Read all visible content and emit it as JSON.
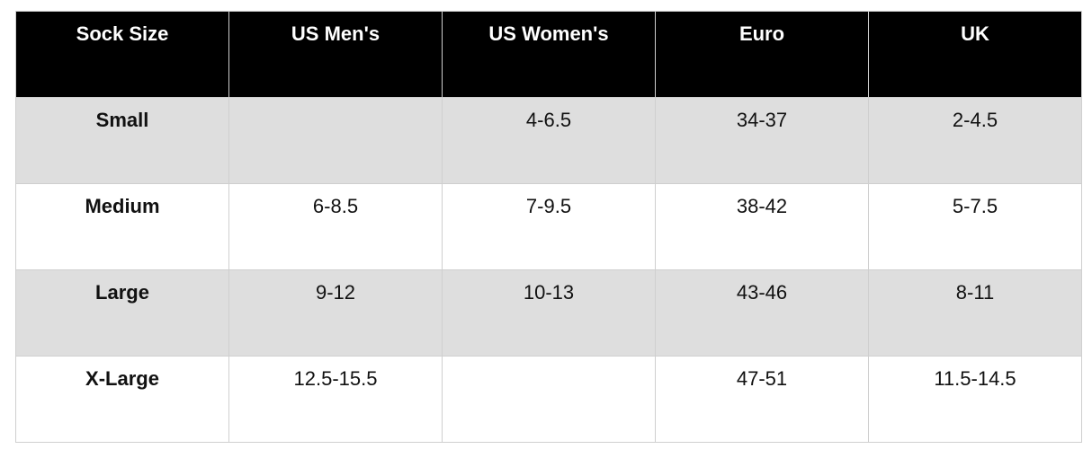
{
  "table": {
    "header": [
      "Sock Size",
      "US Men's",
      "US Women's",
      "Euro",
      "UK"
    ],
    "rows": [
      [
        "Small",
        null,
        "4-6.5",
        "34-37",
        "2-4.5"
      ],
      [
        "Medium",
        "6-8.5",
        "7-9.5",
        "38-42",
        "5-7.5"
      ],
      [
        "Large",
        "9-12",
        "10-13",
        "43-46",
        "8-11"
      ],
      [
        "X-Large",
        "12.5-15.5",
        null,
        "47-51",
        "11.5-14.5"
      ]
    ]
  }
}
